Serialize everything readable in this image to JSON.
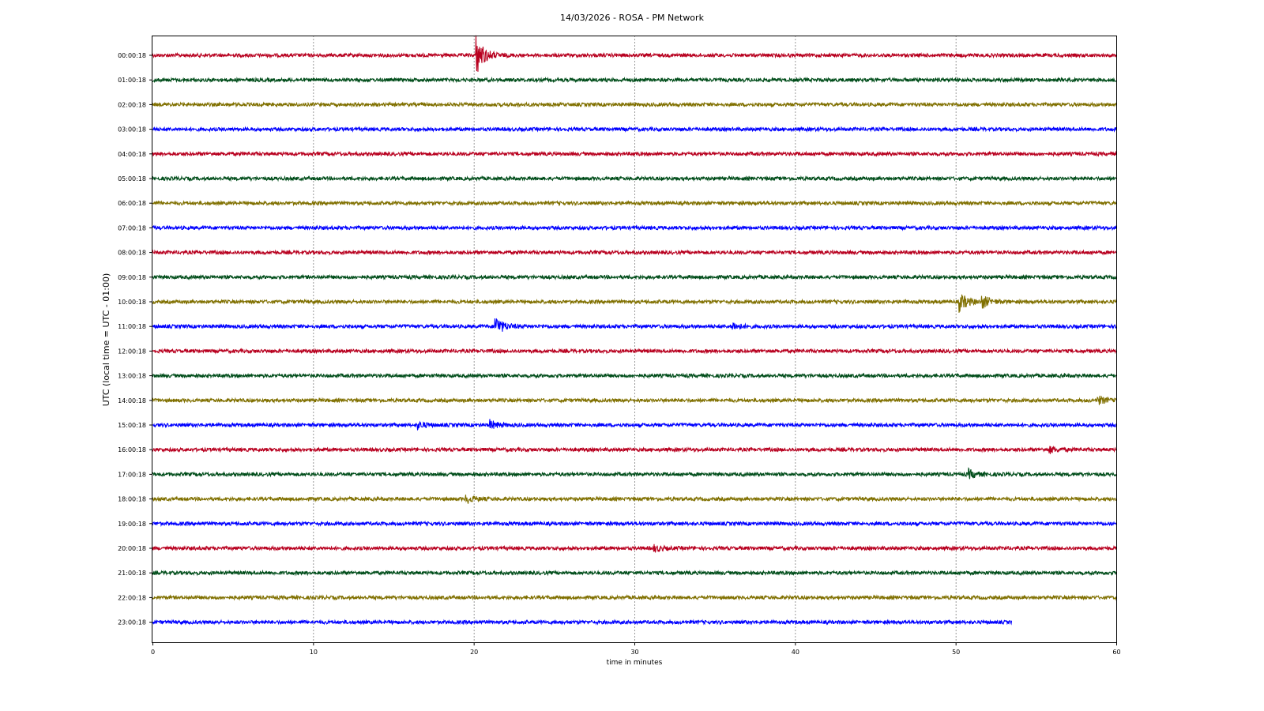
{
  "chart_data": {
    "type": "line",
    "title": "14/03/2026 - ROSA - PM Network",
    "xlabel": "time in minutes",
    "ylabel": "UTC (local time = UTC - 01:00)",
    "xlim": [
      0,
      60
    ],
    "xticks": [
      "0",
      "10",
      "20",
      "30",
      "40",
      "50",
      "60"
    ],
    "grid": "vertical dotted at x ticks",
    "colors": [
      "#b8001f",
      "#004d1a",
      "#807000",
      "#0000ff"
    ],
    "rows": [
      {
        "label": "00:00:18",
        "end": 60,
        "events": [
          {
            "t": 20.1,
            "amp": 1.0
          }
        ]
      },
      {
        "label": "01:00:18",
        "end": 60,
        "events": []
      },
      {
        "label": "02:00:18",
        "end": 60,
        "events": []
      },
      {
        "label": "03:00:18",
        "end": 60,
        "events": []
      },
      {
        "label": "04:00:18",
        "end": 60,
        "events": []
      },
      {
        "label": "05:00:18",
        "end": 60,
        "events": []
      },
      {
        "label": "06:00:18",
        "end": 60,
        "events": []
      },
      {
        "label": "07:00:18",
        "end": 60,
        "events": []
      },
      {
        "label": "08:00:18",
        "end": 60,
        "events": []
      },
      {
        "label": "09:00:18",
        "end": 60,
        "events": []
      },
      {
        "label": "10:00:18",
        "end": 60,
        "events": [
          {
            "t": 50.2,
            "amp": 0.45
          },
          {
            "t": 51.6,
            "amp": 0.3
          }
        ]
      },
      {
        "label": "11:00:18",
        "end": 60,
        "events": [
          {
            "t": 21.3,
            "amp": 0.5
          },
          {
            "t": 36.0,
            "amp": 0.2
          }
        ]
      },
      {
        "label": "12:00:18",
        "end": 60,
        "events": []
      },
      {
        "label": "13:00:18",
        "end": 60,
        "events": []
      },
      {
        "label": "14:00:18",
        "end": 60,
        "events": [
          {
            "t": 58.8,
            "amp": 0.2
          }
        ]
      },
      {
        "label": "15:00:18",
        "end": 60,
        "events": [
          {
            "t": 21.0,
            "amp": 0.2
          },
          {
            "t": 16.5,
            "amp": 0.15
          }
        ]
      },
      {
        "label": "16:00:18",
        "end": 60,
        "events": [
          {
            "t": 55.8,
            "amp": 0.15
          }
        ]
      },
      {
        "label": "17:00:18",
        "end": 60,
        "events": [
          {
            "t": 50.8,
            "amp": 0.2
          }
        ]
      },
      {
        "label": "18:00:18",
        "end": 60,
        "events": [
          {
            "t": 19.5,
            "amp": 0.2
          }
        ]
      },
      {
        "label": "19:00:18",
        "end": 60,
        "events": []
      },
      {
        "label": "20:00:18",
        "end": 60,
        "events": [
          {
            "t": 31.2,
            "amp": 0.15
          }
        ]
      },
      {
        "label": "21:00:18",
        "end": 60,
        "events": []
      },
      {
        "label": "22:00:18",
        "end": 60,
        "events": []
      },
      {
        "label": "23:00:18",
        "end": 53.5,
        "events": []
      }
    ]
  }
}
